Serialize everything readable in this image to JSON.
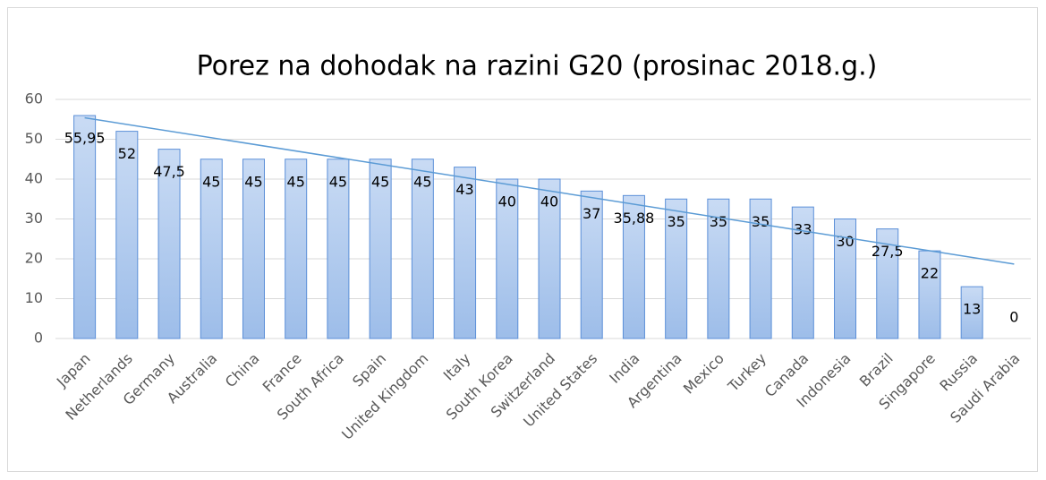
{
  "chart_data": {
    "type": "bar",
    "title": "Porez na dohodak na razini G20 (prosinac 2018.g.)",
    "categories": [
      "Japan",
      "Netherlands",
      "Germany",
      "Australia",
      "China",
      "France",
      "South Africa",
      "Spain",
      "United Kingdom",
      "Italy",
      "South Korea",
      "Switzerland",
      "United States",
      "India",
      "Argentina",
      "Mexico",
      "Turkey",
      "Canada",
      "Indonesia",
      "Brazil",
      "Singapore",
      "Russia",
      "Saudi Arabia"
    ],
    "values": [
      55.95,
      52,
      47.5,
      45,
      45,
      45,
      45,
      45,
      45,
      43,
      40,
      40,
      37,
      35.88,
      35,
      35,
      35,
      33,
      30,
      27.5,
      22,
      13,
      0
    ],
    "value_labels": [
      "55,95",
      "52",
      "47,5",
      "45",
      "45",
      "45",
      "45",
      "45",
      "45",
      "43",
      "40",
      "40",
      "37",
      "35,88",
      "35",
      "35",
      "35",
      "33",
      "30",
      "27,5",
      "22",
      "13",
      "0"
    ],
    "color": "#a9c5ec",
    "edge_color": "#5b8fd8",
    "trendline": "linear",
    "trendline_color": "#5b9bd5",
    "ylim": [
      0,
      60
    ],
    "yticks": [
      0,
      10,
      20,
      30,
      40,
      50,
      60
    ],
    "grid": true
  }
}
